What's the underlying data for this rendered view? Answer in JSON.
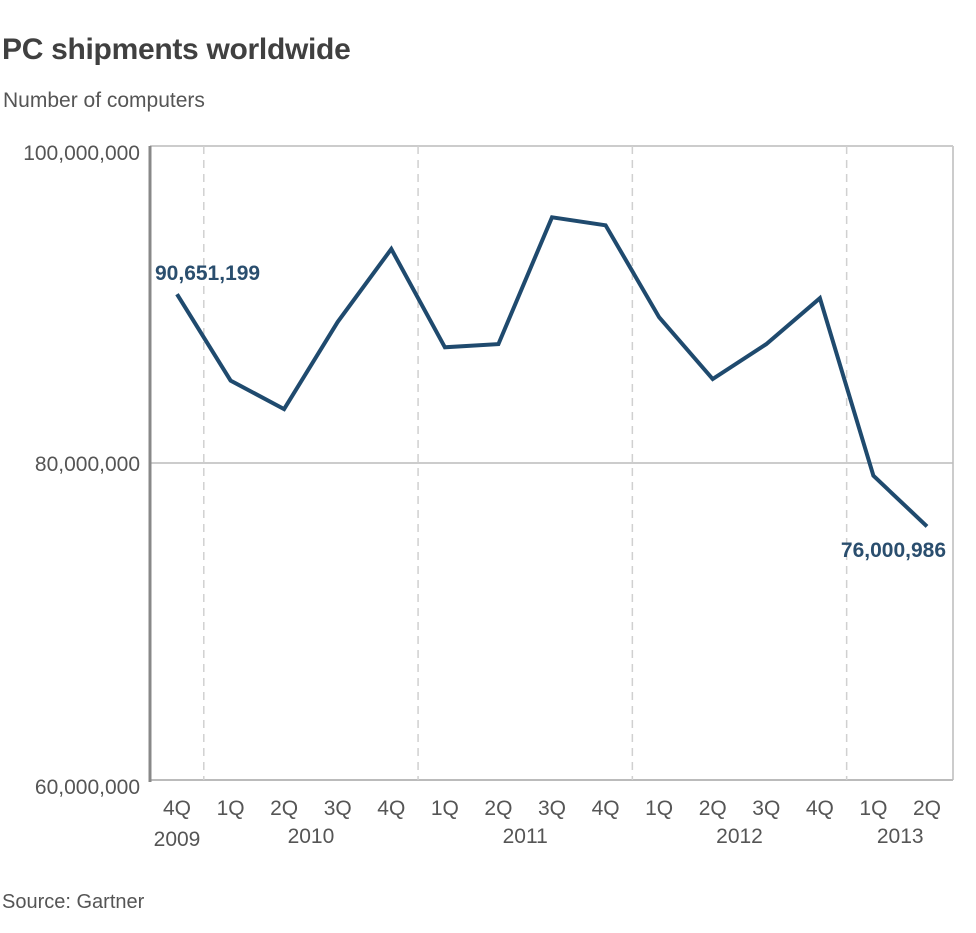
{
  "chart_data": {
    "type": "line",
    "title": "PC shipments worldwide",
    "subtitle": "Number of computers",
    "source": "Source: Gartner",
    "xlabel": "",
    "ylabel": "Number of computers",
    "ylim": [
      60000000,
      100000000
    ],
    "yticks": [
      "100,000,000",
      "80,000,000",
      "60,000,000"
    ],
    "x": [
      "4Q 2009",
      "1Q 2010",
      "2Q 2010",
      "3Q 2010",
      "4Q 2010",
      "1Q 2011",
      "2Q 2011",
      "3Q 2011",
      "4Q 2011",
      "1Q 2012",
      "2Q 2012",
      "3Q 2012",
      "4Q 2012",
      "1Q 2013",
      "2Q 2013"
    ],
    "quarter_labels": [
      "4Q",
      "1Q",
      "2Q",
      "3Q",
      "4Q",
      "1Q",
      "2Q",
      "3Q",
      "4Q",
      "1Q",
      "2Q",
      "3Q",
      "4Q",
      "1Q",
      "2Q"
    ],
    "year_labels": [
      "2009",
      "2010",
      "2011",
      "2012",
      "2013"
    ],
    "series": [
      {
        "name": "PC shipments",
        "color": "#1f4a6e",
        "values": [
          90651199,
          85200000,
          83400000,
          88900000,
          93500000,
          87300000,
          87500000,
          95500000,
          95000000,
          89200000,
          85300000,
          87500000,
          90400000,
          79200000,
          76000986
        ]
      }
    ],
    "annotations": [
      "90,651,199",
      "76,000,986"
    ],
    "grid": {
      "horizontal": true,
      "vertical_dashed_year_separators": true
    },
    "legend": "none"
  }
}
